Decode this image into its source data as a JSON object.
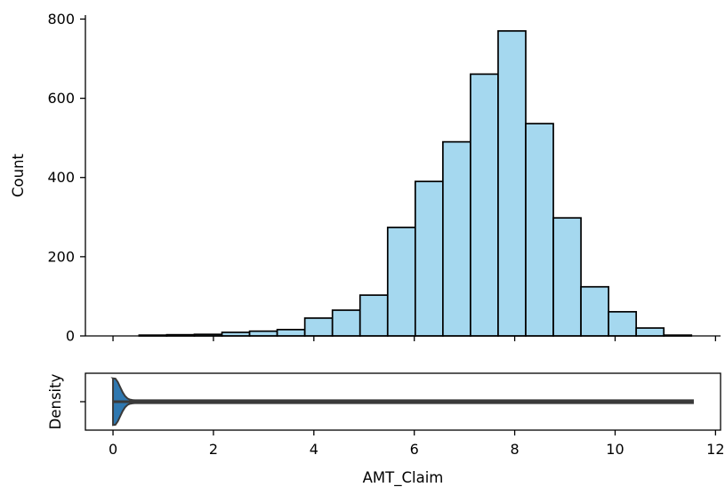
{
  "chart_data": [
    {
      "type": "bar",
      "subtype": "histogram",
      "ylabel": "Count",
      "xlim": [
        -0.55,
        12.1
      ],
      "ylim": [
        0,
        810
      ],
      "yticks": [
        0,
        200,
        400,
        600,
        800
      ],
      "xticks": [
        0,
        2,
        4,
        6,
        8,
        10,
        12
      ],
      "x_ticklabels_visible": false,
      "grid": false,
      "bin_edges": [
        0.52,
        1.07,
        1.62,
        2.17,
        2.72,
        3.27,
        3.82,
        4.37,
        4.92,
        5.47,
        6.02,
        6.57,
        7.12,
        7.67,
        8.22,
        8.77,
        9.32,
        9.87,
        10.42,
        10.97,
        11.52
      ],
      "values": [
        2,
        3,
        4,
        9,
        12,
        16,
        45,
        65,
        103,
        274,
        390,
        490,
        661,
        770,
        536,
        298,
        124,
        61,
        20,
        2
      ],
      "colors": {
        "bar_fill": "#a5d8ef",
        "bar_edge": "#000000"
      }
    },
    {
      "type": "violin",
      "xlabel": "AMT_Claim",
      "ylabel": "Density",
      "xlim": [
        -0.55,
        12.1
      ],
      "xticks": [
        0,
        2,
        4,
        6,
        8,
        10,
        12
      ],
      "xticklabels": [
        "0",
        "2",
        "4",
        "6",
        "8",
        "10",
        "12"
      ],
      "range": [
        0,
        11.55
      ],
      "peak": 0.02,
      "colors": {
        "body": "#2f78b0",
        "edge": "#3a3a3a"
      }
    }
  ]
}
